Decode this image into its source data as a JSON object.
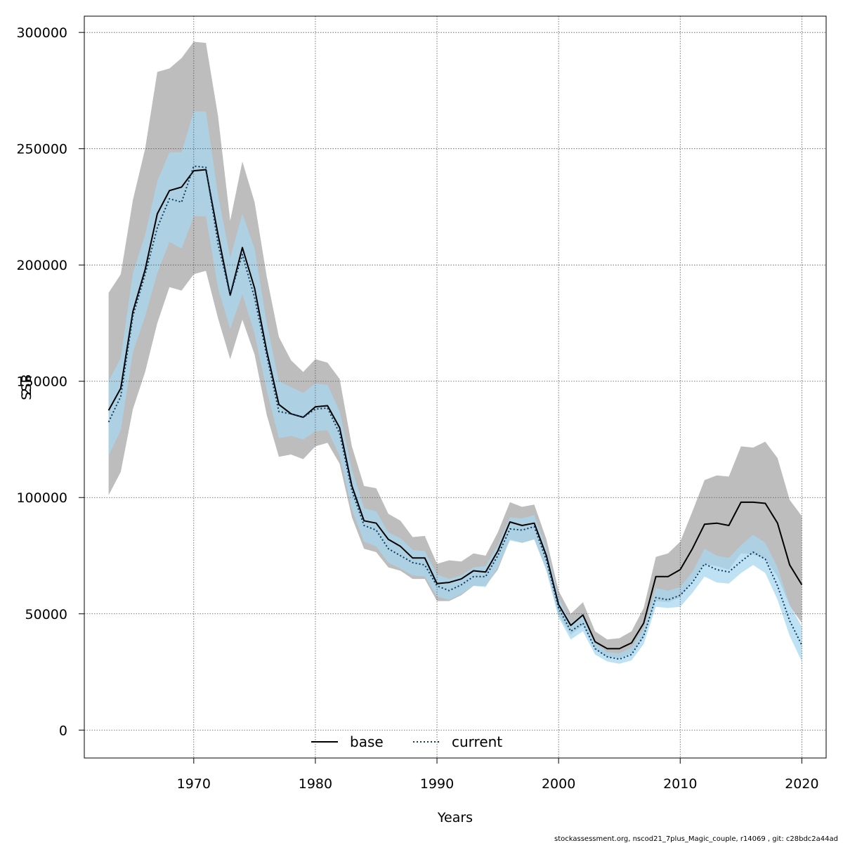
{
  "chart_data": {
    "type": "line",
    "title": "",
    "xlabel": "Years",
    "ylabel": "SSB",
    "xlim": [
      1961,
      2022
    ],
    "ylim": [
      -12000,
      307000
    ],
    "grid": true,
    "legend_position": "bottom-center",
    "x_ticks": [
      1970,
      1980,
      1990,
      2000,
      2010,
      2020
    ],
    "y_ticks": [
      0,
      50000,
      100000,
      150000,
      200000,
      250000,
      300000
    ],
    "x": [
      1963,
      1964,
      1965,
      1966,
      1967,
      1968,
      1969,
      1970,
      1971,
      1972,
      1973,
      1974,
      1975,
      1976,
      1977,
      1978,
      1979,
      1980,
      1981,
      1982,
      1983,
      1984,
      1985,
      1986,
      1987,
      1988,
      1989,
      1990,
      1991,
      1992,
      1993,
      1994,
      1995,
      1996,
      1997,
      1998,
      1999,
      2000,
      2001,
      2002,
      2003,
      2004,
      2005,
      2006,
      2007,
      2008,
      2009,
      2010,
      2011,
      2012,
      2013,
      2014,
      2015,
      2016,
      2017,
      2018,
      2019,
      2020
    ],
    "series": [
      {
        "name": "base",
        "color": "#000000",
        "line_style": "solid",
        "band_color": "#bdbdbd",
        "values": [
          137500,
          147000,
          180000,
          198000,
          222000,
          232000,
          233500,
          240500,
          241000,
          213000,
          187000,
          207500,
          190000,
          163000,
          140000,
          136000,
          134500,
          139000,
          139500,
          130000,
          105000,
          90000,
          89000,
          82000,
          79000,
          74000,
          74000,
          63000,
          63500,
          65000,
          68500,
          68000,
          77000,
          89500,
          88000,
          89000,
          75000,
          54000,
          45000,
          49500,
          38000,
          35000,
          35000,
          37500,
          46000,
          66000,
          66000,
          69000,
          78000,
          88500,
          89000,
          88000,
          98000,
          98000,
          97500,
          89000,
          71000,
          62500
        ],
        "lower": [
          101000,
          111000,
          138000,
          154000,
          175000,
          190500,
          189000,
          196000,
          197500,
          177000,
          159500,
          176500,
          161500,
          135500,
          117500,
          118500,
          116500,
          122000,
          123500,
          114500,
          91500,
          78000,
          76500,
          70000,
          68500,
          65000,
          65000,
          55500,
          55500,
          58000,
          62000,
          62000,
          69000,
          82000,
          80500,
          82000,
          69000,
          49500,
          41000,
          45000,
          34500,
          31500,
          31000,
          33000,
          40000,
          55500,
          55000,
          57000,
          64500,
          71500,
          70500,
          69000,
          76000,
          75500,
          73500,
          66000,
          53500,
          46000
        ],
        "upper": [
          188000,
          196000,
          228000,
          250000,
          283000,
          284500,
          289000,
          296000,
          295500,
          264000,
          219000,
          244500,
          227000,
          195000,
          169000,
          159000,
          154000,
          159500,
          158000,
          151000,
          122000,
          105000,
          104000,
          93000,
          90000,
          83000,
          83500,
          71500,
          73000,
          72500,
          76000,
          75000,
          85000,
          98000,
          96000,
          97000,
          82000,
          60000,
          50000,
          55000,
          42500,
          39000,
          39500,
          42500,
          52500,
          74500,
          76000,
          81000,
          94000,
          107500,
          109500,
          109000,
          122000,
          121500,
          124000,
          117000,
          99000,
          92000
        ]
      },
      {
        "name": "current",
        "color": "#0b3a5e",
        "line_style": "dotted",
        "band_color": "#a8d8f0",
        "values": [
          132500,
          143500,
          178000,
          196000,
          216000,
          228500,
          227000,
          242500,
          242000,
          209000,
          187000,
          204500,
          186000,
          161000,
          137000,
          136000,
          134500,
          138000,
          138500,
          127500,
          103000,
          88000,
          86000,
          78000,
          75000,
          72000,
          71000,
          62000,
          60000,
          62500,
          66000,
          66000,
          75000,
          86500,
          86000,
          87500,
          73000,
          52500,
          42500,
          46000,
          35000,
          31500,
          30500,
          32500,
          40500,
          57000,
          56000,
          58000,
          63500,
          71500,
          69000,
          68000,
          72500,
          76500,
          73500,
          62000,
          47000,
          36500
        ],
        "lower": [
          118000,
          129000,
          162500,
          178000,
          196500,
          210000,
          207000,
          221000,
          221000,
          190000,
          172500,
          187500,
          170500,
          146000,
          125500,
          126500,
          125000,
          128500,
          129000,
          118000,
          95000,
          81000,
          79000,
          72000,
          69500,
          66500,
          66000,
          57500,
          56000,
          58500,
          62000,
          61500,
          70000,
          81500,
          80500,
          82000,
          68500,
          48500,
          39000,
          42500,
          32500,
          29500,
          28500,
          30000,
          37000,
          53000,
          52500,
          53000,
          59000,
          66000,
          63500,
          63000,
          67500,
          71000,
          67500,
          56000,
          40500,
          29500
        ],
        "upper": [
          150000,
          160000,
          196500,
          213000,
          236000,
          248500,
          248500,
          266000,
          266000,
          230000,
          203000,
          222000,
          207000,
          175000,
          150000,
          147500,
          145000,
          149000,
          148500,
          137000,
          112000,
          95500,
          94000,
          85000,
          82500,
          77500,
          77000,
          67000,
          65000,
          66500,
          70000,
          70500,
          79500,
          91500,
          91000,
          92500,
          78000,
          57000,
          46000,
          50000,
          37500,
          33500,
          33000,
          35500,
          44000,
          61000,
          60000,
          61500,
          68000,
          78000,
          75000,
          74000,
          79500,
          84000,
          80500,
          70000,
          54000,
          44500
        ]
      }
    ]
  },
  "footer_text": "stockassessment.org, nscod21_7plus_Magic_couple, r14069 , git: c28bdc2a44ad",
  "ylabel_overlay": "2"
}
